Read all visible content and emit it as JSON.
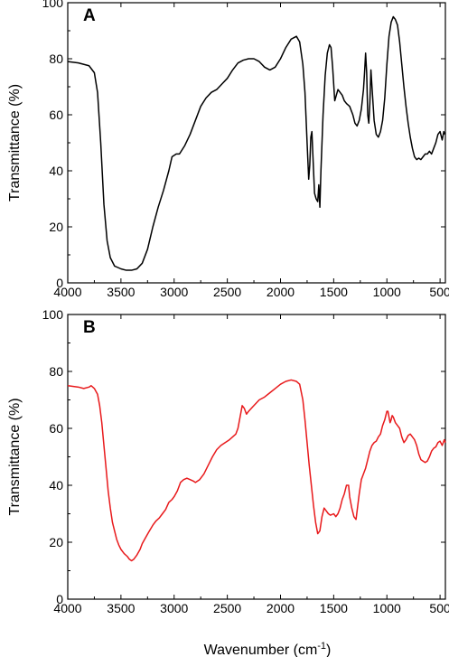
{
  "chart_data": [
    {
      "type": "line",
      "panel_label": "A",
      "ylabel": "Transmittance (%)",
      "xlabel": "",
      "xlim": [
        4000,
        450
      ],
      "x_reversed": true,
      "ylim": [
        0,
        100
      ],
      "xticks": [
        4000,
        3500,
        3000,
        2500,
        2000,
        1500,
        1000,
        500
      ],
      "yticks": [
        0,
        20,
        40,
        60,
        80,
        100
      ],
      "series": [
        {
          "color": "#000000",
          "points": [
            [
              4000,
              79
            ],
            [
              3900,
              78.5
            ],
            [
              3800,
              77.5
            ],
            [
              3750,
              75
            ],
            [
              3720,
              68
            ],
            [
              3690,
              50
            ],
            [
              3660,
              28
            ],
            [
              3630,
              15
            ],
            [
              3600,
              9
            ],
            [
              3560,
              6
            ],
            [
              3500,
              5
            ],
            [
              3450,
              4.5
            ],
            [
              3400,
              4.5
            ],
            [
              3350,
              5
            ],
            [
              3300,
              7
            ],
            [
              3250,
              12
            ],
            [
              3200,
              20
            ],
            [
              3150,
              27
            ],
            [
              3100,
              33
            ],
            [
              3050,
              40
            ],
            [
              3020,
              45
            ],
            [
              2980,
              46
            ],
            [
              2950,
              46
            ],
            [
              2900,
              49
            ],
            [
              2850,
              53
            ],
            [
              2800,
              58
            ],
            [
              2750,
              63
            ],
            [
              2700,
              66
            ],
            [
              2650,
              68
            ],
            [
              2600,
              69
            ],
            [
              2550,
              71
            ],
            [
              2500,
              73
            ],
            [
              2450,
              76
            ],
            [
              2400,
              78.5
            ],
            [
              2350,
              79.5
            ],
            [
              2300,
              80
            ],
            [
              2250,
              80
            ],
            [
              2200,
              79
            ],
            [
              2150,
              77
            ],
            [
              2100,
              76
            ],
            [
              2050,
              77
            ],
            [
              2000,
              80
            ],
            [
              1950,
              84
            ],
            [
              1900,
              87
            ],
            [
              1850,
              88
            ],
            [
              1820,
              86
            ],
            [
              1790,
              78
            ],
            [
              1770,
              68
            ],
            [
              1750,
              50
            ],
            [
              1735,
              37
            ],
            [
              1725,
              42
            ],
            [
              1715,
              52
            ],
            [
              1705,
              54
            ],
            [
              1695,
              45
            ],
            [
              1680,
              32
            ],
            [
              1665,
              30
            ],
            [
              1650,
              29
            ],
            [
              1640,
              35
            ],
            [
              1630,
              27
            ],
            [
              1620,
              40
            ],
            [
              1600,
              60
            ],
            [
              1580,
              74
            ],
            [
              1560,
              82
            ],
            [
              1540,
              85
            ],
            [
              1525,
              84
            ],
            [
              1510,
              77
            ],
            [
              1490,
              65
            ],
            [
              1475,
              67
            ],
            [
              1460,
              69
            ],
            [
              1440,
              68
            ],
            [
              1420,
              67
            ],
            [
              1400,
              65
            ],
            [
              1380,
              64
            ],
            [
              1350,
              63
            ],
            [
              1320,
              60
            ],
            [
              1300,
              57
            ],
            [
              1280,
              56
            ],
            [
              1260,
              58
            ],
            [
              1240,
              62
            ],
            [
              1220,
              69
            ],
            [
              1210,
              75
            ],
            [
              1200,
              82
            ],
            [
              1190,
              75
            ],
            [
              1180,
              60
            ],
            [
              1170,
              57
            ],
            [
              1160,
              64
            ],
            [
              1150,
              76
            ],
            [
              1140,
              70
            ],
            [
              1120,
              58
            ],
            [
              1100,
              53
            ],
            [
              1080,
              52
            ],
            [
              1060,
              54
            ],
            [
              1040,
              58
            ],
            [
              1020,
              66
            ],
            [
              1000,
              78
            ],
            [
              980,
              88
            ],
            [
              960,
              93
            ],
            [
              940,
              95
            ],
            [
              920,
              94
            ],
            [
              900,
              92
            ],
            [
              880,
              86
            ],
            [
              860,
              78
            ],
            [
              840,
              70
            ],
            [
              820,
              63
            ],
            [
              800,
              57
            ],
            [
              780,
              52
            ],
            [
              760,
              48
            ],
            [
              740,
              45
            ],
            [
              720,
              44
            ],
            [
              700,
              44.5
            ],
            [
              680,
              44
            ],
            [
              660,
              45
            ],
            [
              640,
              46
            ],
            [
              620,
              46
            ],
            [
              600,
              47
            ],
            [
              580,
              46
            ],
            [
              560,
              48
            ],
            [
              540,
              50
            ],
            [
              520,
              53
            ],
            [
              500,
              54
            ],
            [
              480,
              51
            ],
            [
              465,
              54
            ],
            [
              455,
              53
            ]
          ]
        }
      ]
    },
    {
      "type": "line",
      "panel_label": "B",
      "ylabel": "Transmittance (%)",
      "xlabel_text": "Wavenumber (cm",
      "xlabel_sup": "-1",
      "xlabel_tail": ")",
      "xlim": [
        4000,
        450
      ],
      "x_reversed": true,
      "ylim": [
        0,
        100
      ],
      "xticks": [
        4000,
        3500,
        3000,
        2500,
        2000,
        1500,
        1000,
        500
      ],
      "yticks": [
        0,
        20,
        40,
        60,
        80,
        100
      ],
      "series": [
        {
          "color": "#e8191b",
          "points": [
            [
              4000,
              75
            ],
            [
              3900,
              74.5
            ],
            [
              3850,
              74
            ],
            [
              3800,
              74.5
            ],
            [
              3780,
              75
            ],
            [
              3750,
              74
            ],
            [
              3720,
              72
            ],
            [
              3700,
              68
            ],
            [
              3680,
              62
            ],
            [
              3660,
              54
            ],
            [
              3640,
              46
            ],
            [
              3620,
              38
            ],
            [
              3600,
              32
            ],
            [
              3580,
              27
            ],
            [
              3560,
              24
            ],
            [
              3540,
              21
            ],
            [
              3520,
              19
            ],
            [
              3500,
              17.5
            ],
            [
              3470,
              16
            ],
            [
              3440,
              15
            ],
            [
              3420,
              14
            ],
            [
              3400,
              13.5
            ],
            [
              3380,
              14
            ],
            [
              3350,
              15.5
            ],
            [
              3320,
              17.5
            ],
            [
              3300,
              19.5
            ],
            [
              3270,
              21.5
            ],
            [
              3240,
              23.5
            ],
            [
              3200,
              26
            ],
            [
              3170,
              27.5
            ],
            [
              3140,
              28.5
            ],
            [
              3110,
              30
            ],
            [
              3080,
              31.5
            ],
            [
              3050,
              34
            ],
            [
              3020,
              35
            ],
            [
              3000,
              36
            ],
            [
              2970,
              38
            ],
            [
              2940,
              41
            ],
            [
              2910,
              42
            ],
            [
              2880,
              42.5
            ],
            [
              2850,
              42
            ],
            [
              2820,
              41.5
            ],
            [
              2800,
              41
            ],
            [
              2760,
              42
            ],
            [
              2720,
              44
            ],
            [
              2680,
              47
            ],
            [
              2640,
              50
            ],
            [
              2600,
              52.5
            ],
            [
              2560,
              54
            ],
            [
              2520,
              55
            ],
            [
              2480,
              56
            ],
            [
              2450,
              57
            ],
            [
              2420,
              58
            ],
            [
              2400,
              60
            ],
            [
              2380,
              64
            ],
            [
              2360,
              68
            ],
            [
              2340,
              67
            ],
            [
              2320,
              65
            ],
            [
              2300,
              66
            ],
            [
              2250,
              68
            ],
            [
              2200,
              70
            ],
            [
              2150,
              71
            ],
            [
              2100,
              72.5
            ],
            [
              2050,
              74
            ],
            [
              2000,
              75.5
            ],
            [
              1950,
              76.5
            ],
            [
              1900,
              77
            ],
            [
              1850,
              76.5
            ],
            [
              1820,
              75.5
            ],
            [
              1790,
              70
            ],
            [
              1770,
              63
            ],
            [
              1750,
              55
            ],
            [
              1730,
              47
            ],
            [
              1710,
              40
            ],
            [
              1690,
              33
            ],
            [
              1670,
              27
            ],
            [
              1650,
              23
            ],
            [
              1630,
              24
            ],
            [
              1610,
              29
            ],
            [
              1590,
              32
            ],
            [
              1570,
              31
            ],
            [
              1550,
              30
            ],
            [
              1530,
              29.5
            ],
            [
              1500,
              30
            ],
            [
              1480,
              29
            ],
            [
              1460,
              30
            ],
            [
              1440,
              32
            ],
            [
              1420,
              35
            ],
            [
              1400,
              37
            ],
            [
              1380,
              40
            ],
            [
              1360,
              40
            ],
            [
              1350,
              36
            ],
            [
              1330,
              32
            ],
            [
              1310,
              29
            ],
            [
              1290,
              28
            ],
            [
              1280,
              31
            ],
            [
              1260,
              37
            ],
            [
              1240,
              42
            ],
            [
              1220,
              44
            ],
            [
              1200,
              46
            ],
            [
              1180,
              49
            ],
            [
              1160,
              52
            ],
            [
              1140,
              54
            ],
            [
              1120,
              55
            ],
            [
              1100,
              55.5
            ],
            [
              1080,
              57
            ],
            [
              1060,
              58
            ],
            [
              1040,
              61
            ],
            [
              1020,
              63
            ],
            [
              1000,
              66
            ],
            [
              990,
              66
            ],
            [
              980,
              64
            ],
            [
              970,
              62
            ],
            [
              960,
              63
            ],
            [
              950,
              64.5
            ],
            [
              940,
              64
            ],
            [
              920,
              62
            ],
            [
              900,
              61
            ],
            [
              880,
              60
            ],
            [
              860,
              57
            ],
            [
              840,
              55
            ],
            [
              820,
              56
            ],
            [
              800,
              57.5
            ],
            [
              780,
              58
            ],
            [
              760,
              57
            ],
            [
              740,
              56
            ],
            [
              720,
              54
            ],
            [
              700,
              51
            ],
            [
              680,
              49
            ],
            [
              660,
              48.5
            ],
            [
              640,
              48
            ],
            [
              620,
              48.5
            ],
            [
              600,
              50
            ],
            [
              580,
              52
            ],
            [
              560,
              53
            ],
            [
              540,
              53.5
            ],
            [
              520,
              55
            ],
            [
              500,
              55.5
            ],
            [
              480,
              54
            ],
            [
              460,
              56
            ],
            [
              450,
              55
            ]
          ]
        }
      ]
    }
  ]
}
